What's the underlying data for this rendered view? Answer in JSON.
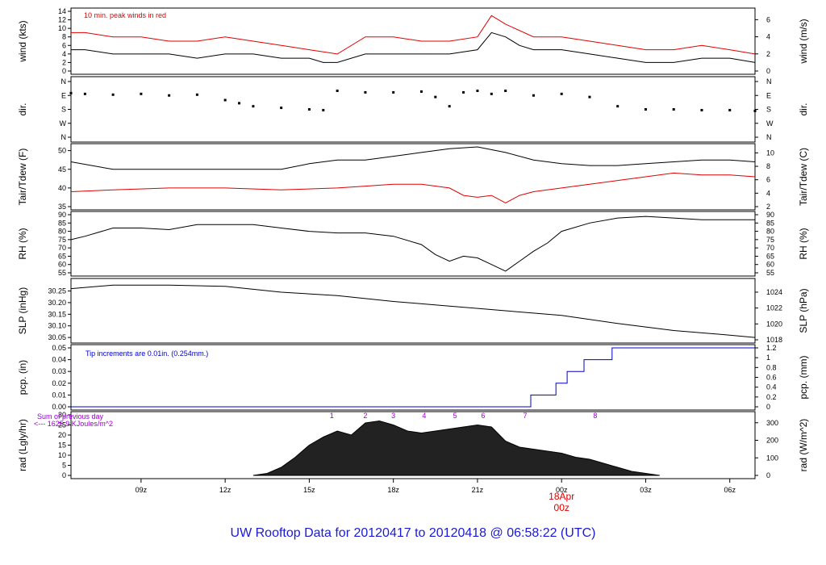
{
  "footer_title": "UW Rooftop Data for 20120417  to  20120418 @ 06:58:22  (UTC)",
  "colors": {
    "black": "#000000",
    "red": "#e00000",
    "blue": "#0000cc",
    "purple": "#9900cc",
    "footer": "#1a1ad6"
  },
  "chart_data": [
    {
      "id": "wind",
      "type": "line",
      "ylabel": "wind (kts)",
      "ylabel_right": "wind (m/s)",
      "ylim": [
        0,
        14
      ],
      "yticks": [
        0,
        2,
        4,
        6,
        8,
        10,
        12,
        14
      ],
      "right_ticks": [
        0,
        2,
        4,
        6
      ],
      "annotation": "10 min. peak winds in red",
      "series": [
        {
          "color": "black",
          "x": [
            6.5,
            7,
            8,
            9,
            10,
            11,
            12,
            13,
            14,
            15,
            15.5,
            16,
            17,
            18,
            19,
            20,
            21,
            21.5,
            22,
            22.5,
            23,
            24,
            25,
            26,
            27,
            28,
            29,
            30,
            30.9
          ],
          "values": [
            5,
            5,
            4,
            4,
            4,
            3,
            4,
            4,
            3,
            3,
            2,
            2,
            4,
            4,
            4,
            4,
            5,
            9,
            8,
            6,
            5,
            5,
            4,
            3,
            2,
            2,
            3,
            3,
            2
          ]
        },
        {
          "color": "red",
          "x": [
            6.5,
            7,
            8,
            9,
            10,
            11,
            12,
            13,
            14,
            15,
            16,
            17,
            18,
            19,
            20,
            21,
            21.5,
            22,
            23,
            24,
            25,
            26,
            27,
            28,
            29,
            30,
            30.9
          ],
          "values": [
            9,
            9,
            8,
            8,
            7,
            7,
            8,
            7,
            6,
            5,
            4,
            8,
            8,
            7,
            7,
            8,
            13,
            11,
            8,
            8,
            7,
            6,
            5,
            5,
            6,
            5,
            4
          ]
        }
      ]
    },
    {
      "id": "dir",
      "type": "scatter",
      "ylabel": "dir.",
      "ylabel_right": "dir.",
      "yticks": [
        "N",
        "W",
        "S",
        "E",
        "N"
      ],
      "x": [
        6.5,
        7,
        8,
        9,
        10,
        11,
        12,
        12.5,
        13,
        14,
        15,
        15.5,
        16,
        17,
        18,
        19,
        19.5,
        20,
        20.5,
        21,
        21.5,
        22,
        23,
        24,
        25,
        26,
        27,
        28,
        29,
        30,
        30.9
      ],
      "values": [
        285,
        280,
        275,
        280,
        270,
        275,
        240,
        220,
        200,
        190,
        180,
        175,
        300,
        290,
        290,
        295,
        260,
        200,
        290,
        300,
        280,
        300,
        270,
        280,
        260,
        200,
        180,
        180,
        175,
        175,
        170
      ]
    },
    {
      "id": "temp",
      "type": "line",
      "ylabel": "Tair/Tdew (F)",
      "ylabel_right": "Tair/Tdew (C)",
      "ylim": [
        35,
        51
      ],
      "yticks": [
        35,
        40,
        45,
        50
      ],
      "right_ticks": [
        2,
        4,
        6,
        8,
        10
      ],
      "series": [
        {
          "name": "Tair",
          "color": "black",
          "x": [
            6.5,
            8,
            10,
            12,
            13,
            14,
            15,
            16,
            17,
            18,
            19,
            20,
            21,
            22,
            23,
            24,
            25,
            26,
            27,
            28,
            29,
            30,
            30.9
          ],
          "values": [
            47,
            45,
            45,
            45,
            45,
            45,
            46.5,
            47.5,
            47.5,
            48.5,
            49.5,
            50.5,
            51,
            49.5,
            47.5,
            46.5,
            46,
            46,
            46.5,
            47,
            47.5,
            47.5,
            47
          ]
        },
        {
          "name": "Tdew",
          "color": "red",
          "x": [
            6.5,
            8,
            10,
            12,
            14,
            16,
            17,
            18,
            19,
            20,
            20.5,
            21,
            21.5,
            22,
            22.5,
            23,
            24,
            25,
            26,
            27,
            28,
            29,
            30,
            30.9
          ],
          "values": [
            39,
            39.5,
            40,
            40,
            39.5,
            40,
            40.5,
            41,
            41,
            40,
            38,
            37.5,
            38,
            36,
            38,
            39,
            40,
            41,
            42,
            43,
            44,
            43.5,
            43.5,
            43
          ]
        }
      ]
    },
    {
      "id": "rh",
      "type": "line",
      "ylabel": "RH (%)",
      "ylabel_right": "RH (%)",
      "ylim": [
        55,
        90
      ],
      "yticks": [
        55,
        60,
        65,
        70,
        75,
        80,
        85,
        90
      ],
      "right_ticks": [
        55,
        60,
        65,
        70,
        75,
        80,
        85,
        90
      ],
      "series": [
        {
          "color": "black",
          "x": [
            6.5,
            7,
            8,
            9,
            10,
            11,
            12,
            13,
            14,
            15,
            16,
            17,
            18,
            19,
            19.5,
            20,
            20.5,
            21,
            21.5,
            22,
            22.5,
            23,
            23.5,
            24,
            25,
            26,
            27,
            28,
            29,
            30,
            30.9
          ],
          "values": [
            75,
            77,
            82,
            82,
            81,
            84,
            84,
            84,
            82,
            80,
            79,
            79,
            77,
            72,
            66,
            62,
            65,
            64,
            60,
            56,
            62,
            68,
            73,
            80,
            85,
            88,
            89,
            88,
            87,
            87,
            87
          ]
        }
      ]
    },
    {
      "id": "slp",
      "type": "line",
      "ylabel": "SLP (inHg)",
      "ylabel_right": "SLP (hPa)",
      "ylim": [
        30.04,
        30.29
      ],
      "yticks": [
        30.05,
        30.1,
        30.15,
        30.2,
        30.25
      ],
      "right_ticks": [
        1018,
        1020,
        1022,
        1024
      ],
      "series": [
        {
          "color": "black",
          "x": [
            6.5,
            8,
            10,
            12,
            14,
            16,
            18,
            20,
            22,
            24,
            26,
            28,
            30,
            30.9
          ],
          "values": [
            30.26,
            30.275,
            30.275,
            30.27,
            30.245,
            30.23,
            30.205,
            30.185,
            30.165,
            30.145,
            30.11,
            30.08,
            30.06,
            30.05
          ]
        }
      ]
    },
    {
      "id": "pcp",
      "type": "line",
      "ylabel": "pcp. (in)",
      "ylabel_right": "pcp. (mm)",
      "ylim": [
        0,
        0.05
      ],
      "yticks": [
        0.0,
        0.01,
        0.02,
        0.03,
        0.04,
        0.05
      ],
      "right_ticks": [
        0,
        0.2,
        0.4,
        0.6,
        0.8,
        1,
        1.2
      ],
      "annotation": "Tip increments are 0.01in. (0.254mm.)",
      "series": [
        {
          "color": "blue",
          "x": [
            6.5,
            22.9,
            22.9,
            23.8,
            23.8,
            24.2,
            24.2,
            24.8,
            24.8,
            25.8,
            25.8,
            30.9
          ],
          "values": [
            0,
            0,
            0.01,
            0.01,
            0.02,
            0.02,
            0.03,
            0.03,
            0.04,
            0.04,
            0.05,
            0.05
          ]
        }
      ]
    },
    {
      "id": "rad",
      "type": "area",
      "ylabel": "rad (Lgly/hr)",
      "ylabel_right": "rad (W/m^2)",
      "ylim": [
        0,
        30
      ],
      "yticks": [
        0,
        5,
        10,
        15,
        20,
        25,
        30
      ],
      "right_ticks": [
        0,
        100,
        200,
        300
      ],
      "annotations": [
        "Sum of previous day",
        "<--- 1625.9 KJoules/m^2"
      ],
      "hour_markers": [
        {
          "x": 15.8,
          "label": "1"
        },
        {
          "x": 17,
          "label": "2"
        },
        {
          "x": 18,
          "label": "3"
        },
        {
          "x": 19.1,
          "label": "4"
        },
        {
          "x": 20.2,
          "label": "5"
        },
        {
          "x": 21.2,
          "label": "6"
        },
        {
          "x": 22.7,
          "label": "7"
        },
        {
          "x": 25.2,
          "label": "8"
        }
      ],
      "series": [
        {
          "color": "black",
          "x": [
            13,
            13.5,
            14,
            14.5,
            15,
            15.5,
            16,
            16.5,
            17,
            17.5,
            18,
            18.5,
            19,
            19.5,
            20,
            20.5,
            21,
            21.5,
            22,
            22.5,
            23,
            23.5,
            24,
            24.5,
            25,
            25.5,
            26,
            26.5,
            27,
            27.5
          ],
          "values": [
            0,
            1,
            4,
            9,
            15,
            19,
            22,
            20,
            26,
            27,
            25,
            22,
            21,
            22,
            23,
            24,
            25,
            24,
            17,
            14,
            13,
            12,
            11,
            9,
            8,
            6,
            4,
            2,
            1,
            0
          ]
        }
      ]
    }
  ],
  "x_axis": {
    "type": "time",
    "xlim": [
      6.5,
      30.9
    ],
    "ticks": [
      {
        "x": 9,
        "label": "09z"
      },
      {
        "x": 12,
        "label": "12z"
      },
      {
        "x": 15,
        "label": "15z"
      },
      {
        "x": 18,
        "label": "18z"
      },
      {
        "x": 21,
        "label": "21z"
      },
      {
        "x": 24,
        "label": "00z"
      },
      {
        "x": 27,
        "label": "03z"
      },
      {
        "x": 30,
        "label": "06z"
      }
    ],
    "date_label": "18Apr",
    "date_tick": {
      "x": 24,
      "label": "00z"
    }
  }
}
